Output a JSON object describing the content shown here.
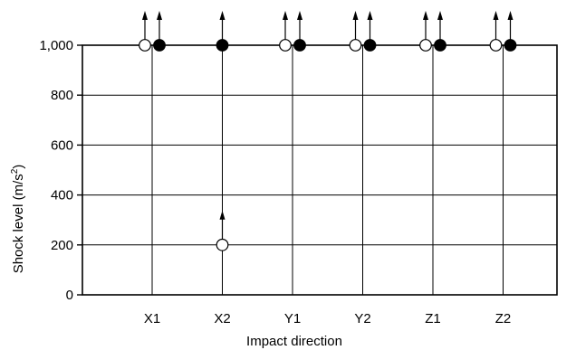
{
  "chart_data": {
    "type": "scatter",
    "title": "",
    "xlabel": "Impact direction",
    "ylabel_main": "Shock level (m/s",
    "ylabel_sup": "2",
    "ylabel_close": ")",
    "categories": [
      "X1",
      "X2",
      "Y1",
      "Y2",
      "Z1",
      "Z2"
    ],
    "ylim": [
      0,
      1000
    ],
    "yticks": [
      0,
      200,
      400,
      600,
      800,
      1000
    ],
    "ytick_labels": [
      "0",
      "200",
      "400",
      "600",
      "800",
      "1,000"
    ],
    "grid": true,
    "series": [
      {
        "marker": "open-circle",
        "color": "#000000",
        "values": [
          1000,
          200,
          1000,
          1000,
          1000,
          1000
        ],
        "arrow_up": true
      },
      {
        "marker": "filled-circle",
        "color": "#000000",
        "values": [
          1000,
          1000,
          1000,
          1000,
          1000,
          1000
        ],
        "arrow_up": true
      }
    ]
  }
}
